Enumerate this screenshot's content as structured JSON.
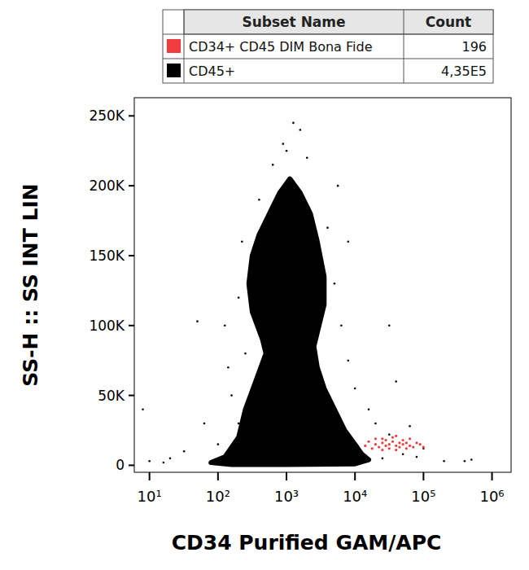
{
  "chart_data": {
    "type": "scatter",
    "x_label": "CD34 Purified GAM/APC",
    "y_label": "SS-H :: SS INT LIN",
    "legend_header": [
      "Subset Name",
      "Count"
    ],
    "legend": "top",
    "log": "x",
    "grid": false,
    "xlim": [
      6,
      1900000
    ],
    "xticks": [
      {
        "value": 10,
        "label": "10¹"
      },
      {
        "value": 100,
        "label": "10²"
      },
      {
        "value": 1000,
        "label": "10³"
      },
      {
        "value": 10000,
        "label": "10⁴"
      },
      {
        "value": 100000,
        "label": "10⁵"
      },
      {
        "value": 1000000,
        "label": "10⁶"
      }
    ],
    "ylim": [
      -5000,
      263000
    ],
    "yticks": [
      0,
      {
        "value": 50000,
        "label": "50K"
      },
      {
        "value": 100000,
        "label": "100K"
      },
      {
        "value": 150000,
        "label": "150K"
      },
      {
        "value": 200000,
        "label": "200K"
      },
      {
        "value": 250000,
        "label": "250K"
      }
    ],
    "series": [
      {
        "name": "CD34+ CD45 DIM Bona Fide",
        "count": 196,
        "color": "#f03c3c",
        "marker": "dot",
        "x": [
          14125,
          15849,
          17783,
          19953,
          19953,
          22387,
          25119,
          25119,
          28184,
          28184,
          31623,
          31623,
          35481,
          35481,
          39811,
          39811,
          44668,
          44668,
          50119,
          50119,
          56234,
          56234,
          63096,
          63096,
          70795,
          79433,
          89125,
          100000,
          39811,
          25119
        ],
        "values": [
          14000,
          17000,
          12000,
          15000,
          19000,
          13000,
          16000,
          11000,
          18000,
          14000,
          15000,
          12000,
          17000,
          20000,
          14000,
          11000,
          16000,
          13000,
          18000,
          15000,
          12000,
          16000,
          14000,
          19000,
          13000,
          16000,
          15000,
          13000,
          21000,
          19000
        ]
      },
      {
        "name": "CD45+",
        "count": 435000,
        "count_label": "4,35E5",
        "color": "#000000",
        "marker": "dot",
        "region_x": [
          79,
          126,
          200,
          251,
          355,
          501,
          447,
          316,
          282,
          316,
          398,
          562,
          794,
          1122,
          1585,
          2239,
          2818,
          3548,
          3548,
          2818,
          2512,
          2818,
          3548,
          5012,
          7079,
          10000,
          12589,
          15849,
          10000,
          1000,
          158
        ],
        "region_values": [
          2000,
          6000,
          20000,
          40000,
          60000,
          80000,
          90000,
          110000,
          130000,
          150000,
          165000,
          180000,
          195000,
          205000,
          195000,
          180000,
          160000,
          135000,
          115000,
          95000,
          85000,
          70000,
          55000,
          40000,
          25000,
          15000,
          8000,
          4000,
          1000,
          500,
          500
        ],
        "x": [
          50,
          200,
          20,
          32,
          16,
          100,
          158,
          251,
          200,
          224,
          398,
          631,
          1259,
          1585,
          891,
          1995,
          3981,
          5012,
          6310,
          7943,
          10000,
          15849,
          19953,
          31623,
          39811,
          31623,
          63096,
          100000,
          199526,
          398107,
          501187,
          50119,
          5623,
          1000,
          141,
          63,
          10,
          8,
          126,
          7943,
          25119,
          79433
        ],
        "values": [
          103000,
          30000,
          5000,
          10000,
          2000,
          15000,
          50000,
          80000,
          120000,
          160000,
          190000,
          215000,
          245000,
          240000,
          230000,
          220000,
          170000,
          130000,
          100000,
          75000,
          55000,
          40000,
          30000,
          22000,
          60000,
          100000,
          28000,
          12000,
          3000,
          3000,
          4000,
          8000,
          200000,
          225000,
          70000,
          30000,
          3000,
          40000,
          100000,
          160000,
          5000,
          6000
        ]
      }
    ]
  }
}
